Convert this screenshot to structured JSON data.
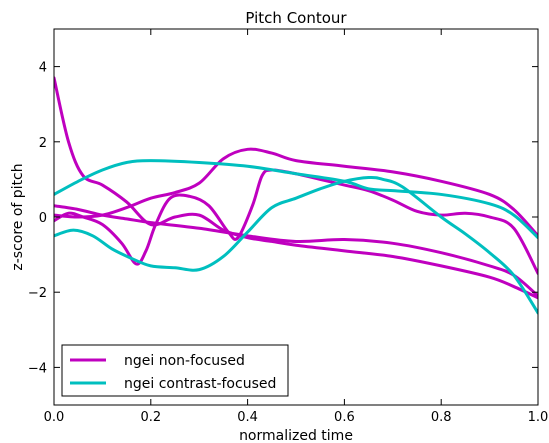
{
  "chart_data": {
    "type": "line",
    "title": "Pitch Contour",
    "xlabel": "normalized time",
    "ylabel": "z-score of pitch",
    "xlim": [
      0.0,
      1.0
    ],
    "ylim": [
      -5,
      5
    ],
    "xticks": [
      0.0,
      0.2,
      0.4,
      0.6,
      0.8,
      1.0
    ],
    "xtick_labels": [
      "0.0",
      "0.2",
      "0.4",
      "0.6",
      "0.8",
      "1.0"
    ],
    "yticks": [
      -4,
      -2,
      0,
      2,
      4
    ],
    "ytick_labels": [
      "−4",
      "−2",
      "0",
      "2",
      "4"
    ],
    "grid": false,
    "legend_position": "lower-left",
    "legend": [
      {
        "label": "ngei non-focused",
        "color": "#bf00bf"
      },
      {
        "label": "ngei contrast-focused",
        "color": "#00bfbf"
      }
    ],
    "series": [
      {
        "group": 0,
        "color": "#bf00bf",
        "points": [
          [
            0,
            3.7
          ],
          [
            0.03,
            2.0
          ],
          [
            0.06,
            1.1
          ],
          [
            0.1,
            0.85
          ],
          [
            0.15,
            0.4
          ],
          [
            0.2,
            -0.2
          ],
          [
            0.25,
            0.0
          ],
          [
            0.3,
            0.05
          ],
          [
            0.35,
            -0.35
          ],
          [
            0.4,
            -0.55
          ],
          [
            0.45,
            -0.65
          ],
          [
            0.5,
            -0.75
          ],
          [
            0.6,
            -0.9
          ],
          [
            0.7,
            -1.05
          ],
          [
            0.8,
            -1.3
          ],
          [
            0.9,
            -1.6
          ],
          [
            0.95,
            -1.85
          ],
          [
            1.0,
            -2.15
          ]
        ]
      },
      {
        "group": 0,
        "color": "#bf00bf",
        "points": [
          [
            0,
            0.3
          ],
          [
            0.05,
            0.2
          ],
          [
            0.1,
            0.05
          ],
          [
            0.15,
            -0.05
          ],
          [
            0.2,
            -0.15
          ],
          [
            0.3,
            -0.3
          ],
          [
            0.4,
            -0.5
          ],
          [
            0.5,
            -0.65
          ],
          [
            0.6,
            -0.6
          ],
          [
            0.7,
            -0.7
          ],
          [
            0.8,
            -0.95
          ],
          [
            0.9,
            -1.3
          ],
          [
            0.95,
            -1.55
          ],
          [
            1.0,
            -2.1
          ]
        ]
      },
      {
        "group": 0,
        "color": "#bf00bf",
        "points": [
          [
            0,
            -0.1
          ],
          [
            0.03,
            0.1
          ],
          [
            0.06,
            0.0
          ],
          [
            0.1,
            -0.2
          ],
          [
            0.14,
            -0.7
          ],
          [
            0.17,
            -1.25
          ],
          [
            0.19,
            -0.9
          ],
          [
            0.21,
            -0.2
          ],
          [
            0.24,
            0.5
          ],
          [
            0.28,
            0.55
          ],
          [
            0.32,
            0.3
          ],
          [
            0.36,
            -0.4
          ],
          [
            0.38,
            -0.55
          ],
          [
            0.41,
            0.3
          ],
          [
            0.43,
            1.1
          ],
          [
            0.45,
            1.25
          ],
          [
            0.5,
            1.15
          ],
          [
            0.55,
            1.0
          ],
          [
            0.6,
            0.85
          ],
          [
            0.65,
            0.7
          ],
          [
            0.7,
            0.45
          ],
          [
            0.75,
            0.15
          ],
          [
            0.8,
            0.05
          ],
          [
            0.85,
            0.1
          ],
          [
            0.9,
            0.0
          ],
          [
            0.95,
            -0.3
          ],
          [
            1.0,
            -1.5
          ]
        ]
      },
      {
        "group": 0,
        "color": "#bf00bf",
        "points": [
          [
            0,
            0.05
          ],
          [
            0.05,
            0.0
          ],
          [
            0.1,
            0.05
          ],
          [
            0.15,
            0.25
          ],
          [
            0.2,
            0.5
          ],
          [
            0.25,
            0.65
          ],
          [
            0.3,
            0.9
          ],
          [
            0.35,
            1.55
          ],
          [
            0.4,
            1.8
          ],
          [
            0.45,
            1.7
          ],
          [
            0.5,
            1.5
          ],
          [
            0.6,
            1.35
          ],
          [
            0.7,
            1.2
          ],
          [
            0.8,
            0.95
          ],
          [
            0.9,
            0.6
          ],
          [
            0.95,
            0.2
          ],
          [
            1.0,
            -0.5
          ]
        ]
      },
      {
        "group": 1,
        "color": "#00bfbf",
        "points": [
          [
            0,
            0.6
          ],
          [
            0.05,
            0.95
          ],
          [
            0.1,
            1.25
          ],
          [
            0.15,
            1.45
          ],
          [
            0.2,
            1.5
          ],
          [
            0.3,
            1.45
          ],
          [
            0.4,
            1.35
          ],
          [
            0.5,
            1.15
          ],
          [
            0.6,
            0.95
          ],
          [
            0.65,
            0.75
          ],
          [
            0.7,
            0.7
          ],
          [
            0.8,
            0.6
          ],
          [
            0.9,
            0.35
          ],
          [
            0.95,
            0.05
          ],
          [
            1.0,
            -0.55
          ]
        ]
      },
      {
        "group": 1,
        "color": "#00bfbf",
        "points": [
          [
            0,
            -0.5
          ],
          [
            0.04,
            -0.35
          ],
          [
            0.08,
            -0.5
          ],
          [
            0.12,
            -0.85
          ],
          [
            0.16,
            -1.1
          ],
          [
            0.2,
            -1.3
          ],
          [
            0.25,
            -1.35
          ],
          [
            0.3,
            -1.4
          ],
          [
            0.35,
            -1.05
          ],
          [
            0.4,
            -0.4
          ],
          [
            0.45,
            0.25
          ],
          [
            0.5,
            0.5
          ],
          [
            0.55,
            0.75
          ],
          [
            0.6,
            0.95
          ],
          [
            0.65,
            1.05
          ],
          [
            0.68,
            1.0
          ],
          [
            0.72,
            0.8
          ],
          [
            0.8,
            0.0
          ],
          [
            0.85,
            -0.45
          ],
          [
            0.9,
            -0.95
          ],
          [
            0.95,
            -1.55
          ],
          [
            1.0,
            -2.55
          ]
        ]
      }
    ]
  }
}
